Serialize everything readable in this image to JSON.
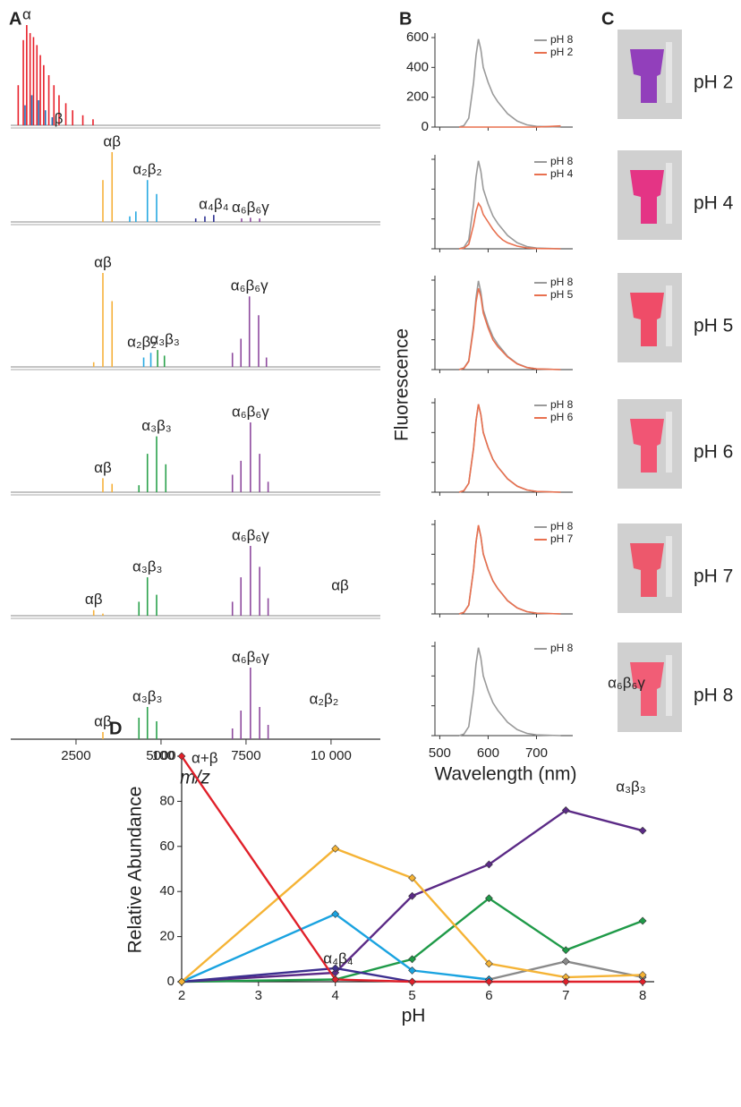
{
  "chart_data": [
    {
      "type": "spectrum",
      "panel": "A",
      "xlabel": "m/z",
      "xlim": [
        580,
        11450
      ],
      "xticks": [
        2500,
        5000,
        7500,
        {
          "value": 10000,
          "label": "10 000"
        }
      ],
      "spectra": [
        {
          "groups": [
            {
              "name": "α",
              "color": "#e8202a",
              "x": [
                800,
                950,
                1050,
                1150,
                1250,
                1350,
                1450,
                1550,
                1700,
                1850,
                2000,
                2200,
                2400,
                2700,
                3000
              ],
              "values": [
                40,
                85,
                100,
                92,
                88,
                80,
                70,
                60,
                50,
                40,
                30,
                22,
                15,
                10,
                6
              ]
            },
            {
              "name": "β",
              "color": "#1d71b8",
              "x": [
                1000,
                1200,
                1400,
                1600,
                1800
              ],
              "values": [
                20,
                30,
                25,
                15,
                8
              ]
            }
          ]
        },
        {
          "groups": [
            {
              "name": "αβ",
              "color": "#f6b13b",
              "x": [
                3290,
                3560
              ],
              "values": [
                60,
                100
              ]
            },
            {
              "name": "α₂β₂",
              "color": "#28a9e1",
              "x": [
                4080,
                4260,
                4600,
                4870
              ],
              "values": [
                8,
                15,
                60,
                40
              ]
            },
            {
              "name": "α₄β₄",
              "color": "#2e3192",
              "x": [
                6020,
                6290,
                6550
              ],
              "values": [
                5,
                8,
                10
              ]
            },
            {
              "name": "α₆β₆γ",
              "color": "#8e4a9e",
              "x": [
                7370,
                7630,
                7900
              ],
              "values": [
                5,
                6,
                5
              ]
            }
          ]
        },
        {
          "groups": [
            {
              "name": "αβ",
              "color": "#f6b13b",
              "x": [
                3020,
                3290,
                3560
              ],
              "values": [
                5,
                100,
                70
              ]
            },
            {
              "name": "α₂β₂",
              "color": "#28a9e1",
              "x": [
                4490,
                4700
              ],
              "values": [
                10,
                15
              ]
            },
            {
              "name": "α₃β₃",
              "color": "#2ba24c",
              "x": [
                4900,
                5100
              ],
              "values": [
                18,
                12
              ]
            },
            {
              "name": "α₆β₆γ",
              "color": "#8e4a9e",
              "x": [
                7100,
                7350,
                7600,
                7870,
                8100
              ],
              "values": [
                15,
                30,
                75,
                55,
                10
              ]
            }
          ]
        },
        {
          "groups": [
            {
              "name": "αβ",
              "color": "#f6b13b",
              "x": [
                3290,
                3560
              ],
              "values": [
                20,
                12
              ]
            },
            {
              "name": "α₃β₃",
              "color": "#2ba24c",
              "x": [
                4350,
                4600,
                4870,
                5140
              ],
              "values": [
                10,
                55,
                80,
                40
              ]
            },
            {
              "name": "α₆β₆γ",
              "color": "#8e4a9e",
              "x": [
                7100,
                7350,
                7630,
                7900,
                8150
              ],
              "values": [
                25,
                45,
                100,
                55,
                15
              ]
            }
          ]
        },
        {
          "groups": [
            {
              "name": "αβ",
              "color": "#f6b13b",
              "x": [
                3020,
                3290
              ],
              "values": [
                8,
                3
              ]
            },
            {
              "name": "α₃β₃",
              "color": "#2ba24c",
              "x": [
                4350,
                4600,
                4870
              ],
              "values": [
                20,
                55,
                30
              ]
            },
            {
              "name": "α₆β₆γ",
              "color": "#8e4a9e",
              "x": [
                7100,
                7350,
                7630,
                7900,
                8150
              ],
              "values": [
                20,
                55,
                100,
                70,
                25
              ]
            }
          ]
        },
        {
          "groups": [
            {
              "name": "αβ",
              "color": "#f6b13b",
              "x": [
                3290
              ],
              "values": [
                10
              ]
            },
            {
              "name": "α₃β₃",
              "color": "#2ba24c",
              "x": [
                4350,
                4600,
                4870
              ],
              "values": [
                30,
                45,
                25
              ]
            },
            {
              "name": "α₆β₆γ",
              "color": "#8e4a9e",
              "x": [
                7100,
                7350,
                7630,
                7900,
                8150
              ],
              "values": [
                15,
                40,
                100,
                45,
                20
              ]
            }
          ]
        }
      ]
    },
    {
      "type": "line-panels",
      "panel": "B",
      "xlabel": "Wavelength (nm)",
      "ylabel": "Fluorescence",
      "xlim": [
        490,
        775
      ],
      "xticks": [
        500,
        600,
        700
      ],
      "ylim": [
        0,
        630
      ],
      "yticks": [
        0,
        200,
        400,
        600
      ],
      "x": [
        540,
        550,
        560,
        570,
        575,
        580,
        585,
        590,
        600,
        610,
        620,
        630,
        640,
        660,
        680,
        700,
        750
      ],
      "panels": [
        {
          "series": [
            {
              "name": "pH 8",
              "color": "#9a9a9a",
              "values": [
                0,
                10,
                60,
                300,
                480,
                590,
                520,
                400,
                300,
                220,
                170,
                130,
                90,
                40,
                15,
                5,
                0
              ]
            },
            {
              "name": "pH 2",
              "color": "#e8704f",
              "values": [
                0,
                0,
                0,
                0,
                0,
                0,
                0,
                0,
                0,
                0,
                0,
                0,
                0,
                0,
                0,
                0,
                8
              ]
            }
          ]
        },
        {
          "series": [
            {
              "name": "pH 8",
              "color": "#9a9a9a",
              "values": [
                0,
                10,
                60,
                300,
                480,
                590,
                520,
                400,
                300,
                220,
                170,
                130,
                90,
                40,
                15,
                5,
                0
              ]
            },
            {
              "name": "pH 4",
              "color": "#e8704f",
              "values": [
                0,
                5,
                30,
                160,
                250,
                305,
                280,
                230,
                180,
                130,
                90,
                60,
                40,
                18,
                6,
                2,
                0
              ]
            }
          ]
        },
        {
          "series": [
            {
              "name": "pH 8",
              "color": "#9a9a9a",
              "values": [
                0,
                10,
                60,
                300,
                480,
                595,
                520,
                400,
                300,
                220,
                170,
                130,
                90,
                40,
                15,
                5,
                0
              ]
            },
            {
              "name": "pH 5",
              "color": "#e8704f",
              "values": [
                0,
                9,
                55,
                280,
                450,
                545,
                490,
                380,
                280,
                200,
                155,
                120,
                85,
                38,
                14,
                5,
                0
              ]
            }
          ]
        },
        {
          "series": [
            {
              "name": "pH 8",
              "color": "#9a9a9a",
              "values": [
                0,
                10,
                60,
                300,
                480,
                590,
                520,
                400,
                300,
                220,
                170,
                130,
                90,
                40,
                15,
                5,
                0
              ]
            },
            {
              "name": "pH 6",
              "color": "#e8704f",
              "values": [
                0,
                10,
                60,
                295,
                478,
                590,
                520,
                400,
                300,
                220,
                170,
                130,
                90,
                40,
                15,
                5,
                0
              ]
            }
          ]
        },
        {
          "series": [
            {
              "name": "pH 8",
              "color": "#9a9a9a",
              "values": [
                0,
                10,
                60,
                300,
                480,
                590,
                520,
                400,
                300,
                220,
                170,
                130,
                90,
                40,
                15,
                5,
                0
              ]
            },
            {
              "name": "pH 7",
              "color": "#e8704f",
              "values": [
                0,
                10,
                58,
                298,
                480,
                595,
                518,
                402,
                300,
                222,
                170,
                130,
                88,
                40,
                15,
                5,
                0
              ]
            }
          ]
        },
        {
          "series": [
            {
              "name": "pH 8",
              "color": "#9a9a9a",
              "values": [
                0,
                10,
                60,
                300,
                480,
                590,
                520,
                400,
                300,
                220,
                170,
                130,
                90,
                40,
                15,
                5,
                0
              ]
            }
          ]
        }
      ]
    },
    {
      "type": "line",
      "panel": "D",
      "xlabel": "pH",
      "ylabel": "Relative Abundance",
      "x": [
        2,
        4,
        5,
        6,
        7,
        8
      ],
      "xlim": [
        2,
        8.15
      ],
      "xticks": [
        2,
        3,
        4,
        5,
        6,
        7,
        8
      ],
      "ylim": [
        0,
        100
      ],
      "yticks": [
        0,
        20,
        40,
        60,
        80,
        100
      ],
      "series": [
        {
          "name": "α+β",
          "color": "#e0202a",
          "values": [
            100,
            1,
            0,
            0,
            0,
            0
          ]
        },
        {
          "name": "αβ",
          "color": "#f5b335",
          "values": [
            0,
            59,
            46,
            8,
            2,
            3
          ]
        },
        {
          "name": "α₂β₂",
          "color": "#1aa3e0",
          "values": [
            0,
            30,
            5,
            1,
            null,
            null
          ]
        },
        {
          "name": "α₄β₄",
          "color": "#3d2f8f",
          "values": [
            0,
            6,
            0,
            null,
            null,
            null
          ]
        },
        {
          "name": "α₆β₆γ",
          "color": "#5b2a86",
          "values": [
            0,
            4,
            38,
            52,
            76,
            67
          ]
        },
        {
          "name": "α₃β₃",
          "color": "#1f9a48",
          "values": [
            0,
            1,
            10,
            37,
            14,
            27
          ]
        },
        {
          "color": "#8a8a8a",
          "values": [
            null,
            null,
            null,
            1,
            9,
            2
          ]
        }
      ]
    }
  ],
  "photos": {
    "panel": "C",
    "labels": [
      "pH 2",
      "pH 4",
      "pH 5",
      "pH 6",
      "pH 7",
      "pH 8"
    ]
  }
}
